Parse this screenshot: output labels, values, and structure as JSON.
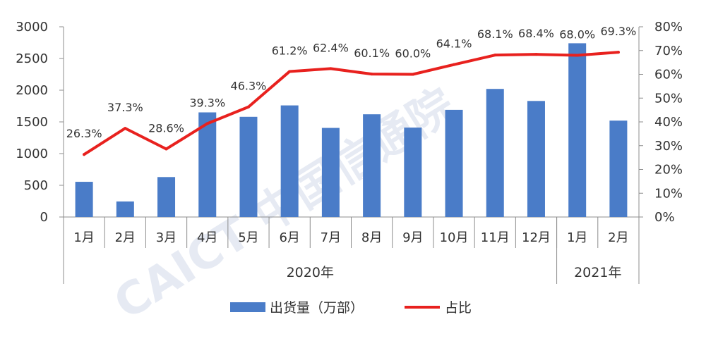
{
  "chart_data": {
    "type": "bar",
    "categories": [
      "1月",
      "2月",
      "3月",
      "4月",
      "5月",
      "6月",
      "7月",
      "8月",
      "9月",
      "10月",
      "11月",
      "12月",
      "1月",
      "2月"
    ],
    "groups": [
      {
        "label": "2020年",
        "count": 12
      },
      {
        "label": "2021年",
        "count": 2
      }
    ],
    "series": [
      {
        "name": "出货量（万部）",
        "type": "bar",
        "axis": "left",
        "color": "#4a7cc8",
        "values": [
          555,
          245,
          630,
          1650,
          1580,
          1760,
          1405,
          1620,
          1410,
          1690,
          2020,
          1830,
          2740,
          1520
        ]
      },
      {
        "name": "占比",
        "type": "line",
        "axis": "right",
        "color": "#e8211e",
        "values": [
          26.3,
          37.3,
          28.6,
          39.3,
          46.3,
          61.2,
          62.4,
          60.1,
          60.0,
          64.1,
          68.1,
          68.4,
          68.0,
          69.3
        ],
        "labels": [
          "26.3%",
          "37.3%",
          "28.6%",
          "39.3%",
          "46.3%",
          "61.2%",
          "62.4%",
          "60.1%",
          "60.0%",
          "64.1%",
          "68.1%",
          "68.4%",
          "68.0%",
          "69.3%"
        ]
      }
    ],
    "y_left": {
      "min": 0,
      "max": 3000,
      "ticks": [
        "0",
        "500",
        "1000",
        "1500",
        "2000",
        "2500",
        "3000"
      ]
    },
    "y_right": {
      "min": 0,
      "max": 80,
      "ticks": [
        "0%",
        "10%",
        "20%",
        "30%",
        "40%",
        "50%",
        "60%",
        "70%",
        "80%"
      ]
    },
    "grid": false,
    "legend_position": "bottom"
  },
  "watermark": "CAICT 中国信通院"
}
